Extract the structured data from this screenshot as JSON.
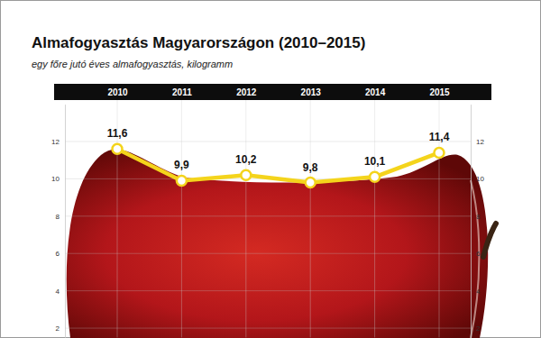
{
  "chart_data": {
    "type": "line",
    "title": "Almafogyasztás Magyarországon (2010–2015)",
    "subtitle": "egy főre jutó éves almafogyasztás, kilogramm",
    "categories": [
      "2010",
      "2011",
      "2012",
      "2013",
      "2014",
      "2015"
    ],
    "values": [
      11.6,
      9.9,
      10.2,
      9.8,
      10.1,
      11.4
    ],
    "value_labels": [
      "11,6",
      "9,9",
      "10,2",
      "9,8",
      "10,1",
      "11,4"
    ],
    "color": "#f4d41c",
    "marker": "circle",
    "data_labels": true,
    "ylim": [
      1.5,
      14
    ],
    "yticks": [
      2,
      4,
      6,
      8,
      10,
      12
    ],
    "grid": true
  }
}
